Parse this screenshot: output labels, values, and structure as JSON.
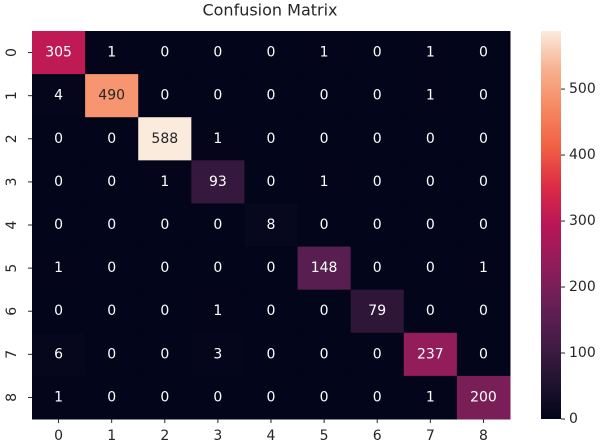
{
  "chart_data": {
    "type": "heatmap",
    "title": "Confusion Matrix",
    "x_categories": [
      "0",
      "1",
      "2",
      "3",
      "4",
      "5",
      "6",
      "7",
      "8"
    ],
    "y_categories": [
      "0",
      "1",
      "2",
      "3",
      "4",
      "5",
      "6",
      "7",
      "8"
    ],
    "z": [
      [
        305,
        1,
        0,
        0,
        0,
        1,
        0,
        1,
        0
      ],
      [
        4,
        490,
        0,
        0,
        0,
        0,
        0,
        1,
        0
      ],
      [
        0,
        0,
        588,
        1,
        0,
        0,
        0,
        0,
        0
      ],
      [
        0,
        0,
        1,
        93,
        0,
        1,
        0,
        0,
        0
      ],
      [
        0,
        0,
        0,
        0,
        8,
        0,
        0,
        0,
        0
      ],
      [
        1,
        0,
        0,
        0,
        0,
        148,
        0,
        0,
        1
      ],
      [
        0,
        0,
        0,
        1,
        0,
        0,
        79,
        0,
        0
      ],
      [
        6,
        0,
        0,
        3,
        0,
        0,
        0,
        237,
        0
      ],
      [
        1,
        0,
        0,
        0,
        0,
        0,
        0,
        1,
        200
      ]
    ],
    "colormap": "rocket",
    "zlim": [
      0,
      588
    ],
    "zticks": [
      0,
      100,
      200,
      300,
      400,
      500
    ]
  }
}
